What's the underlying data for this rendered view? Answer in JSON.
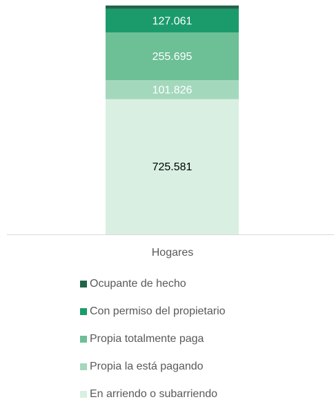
{
  "chart_data": {
    "type": "stacked-bar",
    "categories": [
      "Hogares"
    ],
    "series": [
      {
        "name": "Ocupante de hecho",
        "color": "#21644a",
        "values": [
          18
        ]
      },
      {
        "name": "Con permiso del propietario",
        "color": "#1b9b6c",
        "label_color": "#ffffff",
        "values": [
          127.061
        ]
      },
      {
        "name": "Propia totalmente paga",
        "color": "#6dbf96",
        "label_color": "#ffffff",
        "values": [
          255.695
        ]
      },
      {
        "name": "Propia la está pagando",
        "color": "#a4d8bd",
        "label_color": "#ffffff",
        "values": [
          101.826
        ]
      },
      {
        "name": "En arriendo o subarriendo",
        "color": "#d9efe2",
        "label_color": "#000000",
        "values": [
          725.581
        ]
      }
    ]
  }
}
